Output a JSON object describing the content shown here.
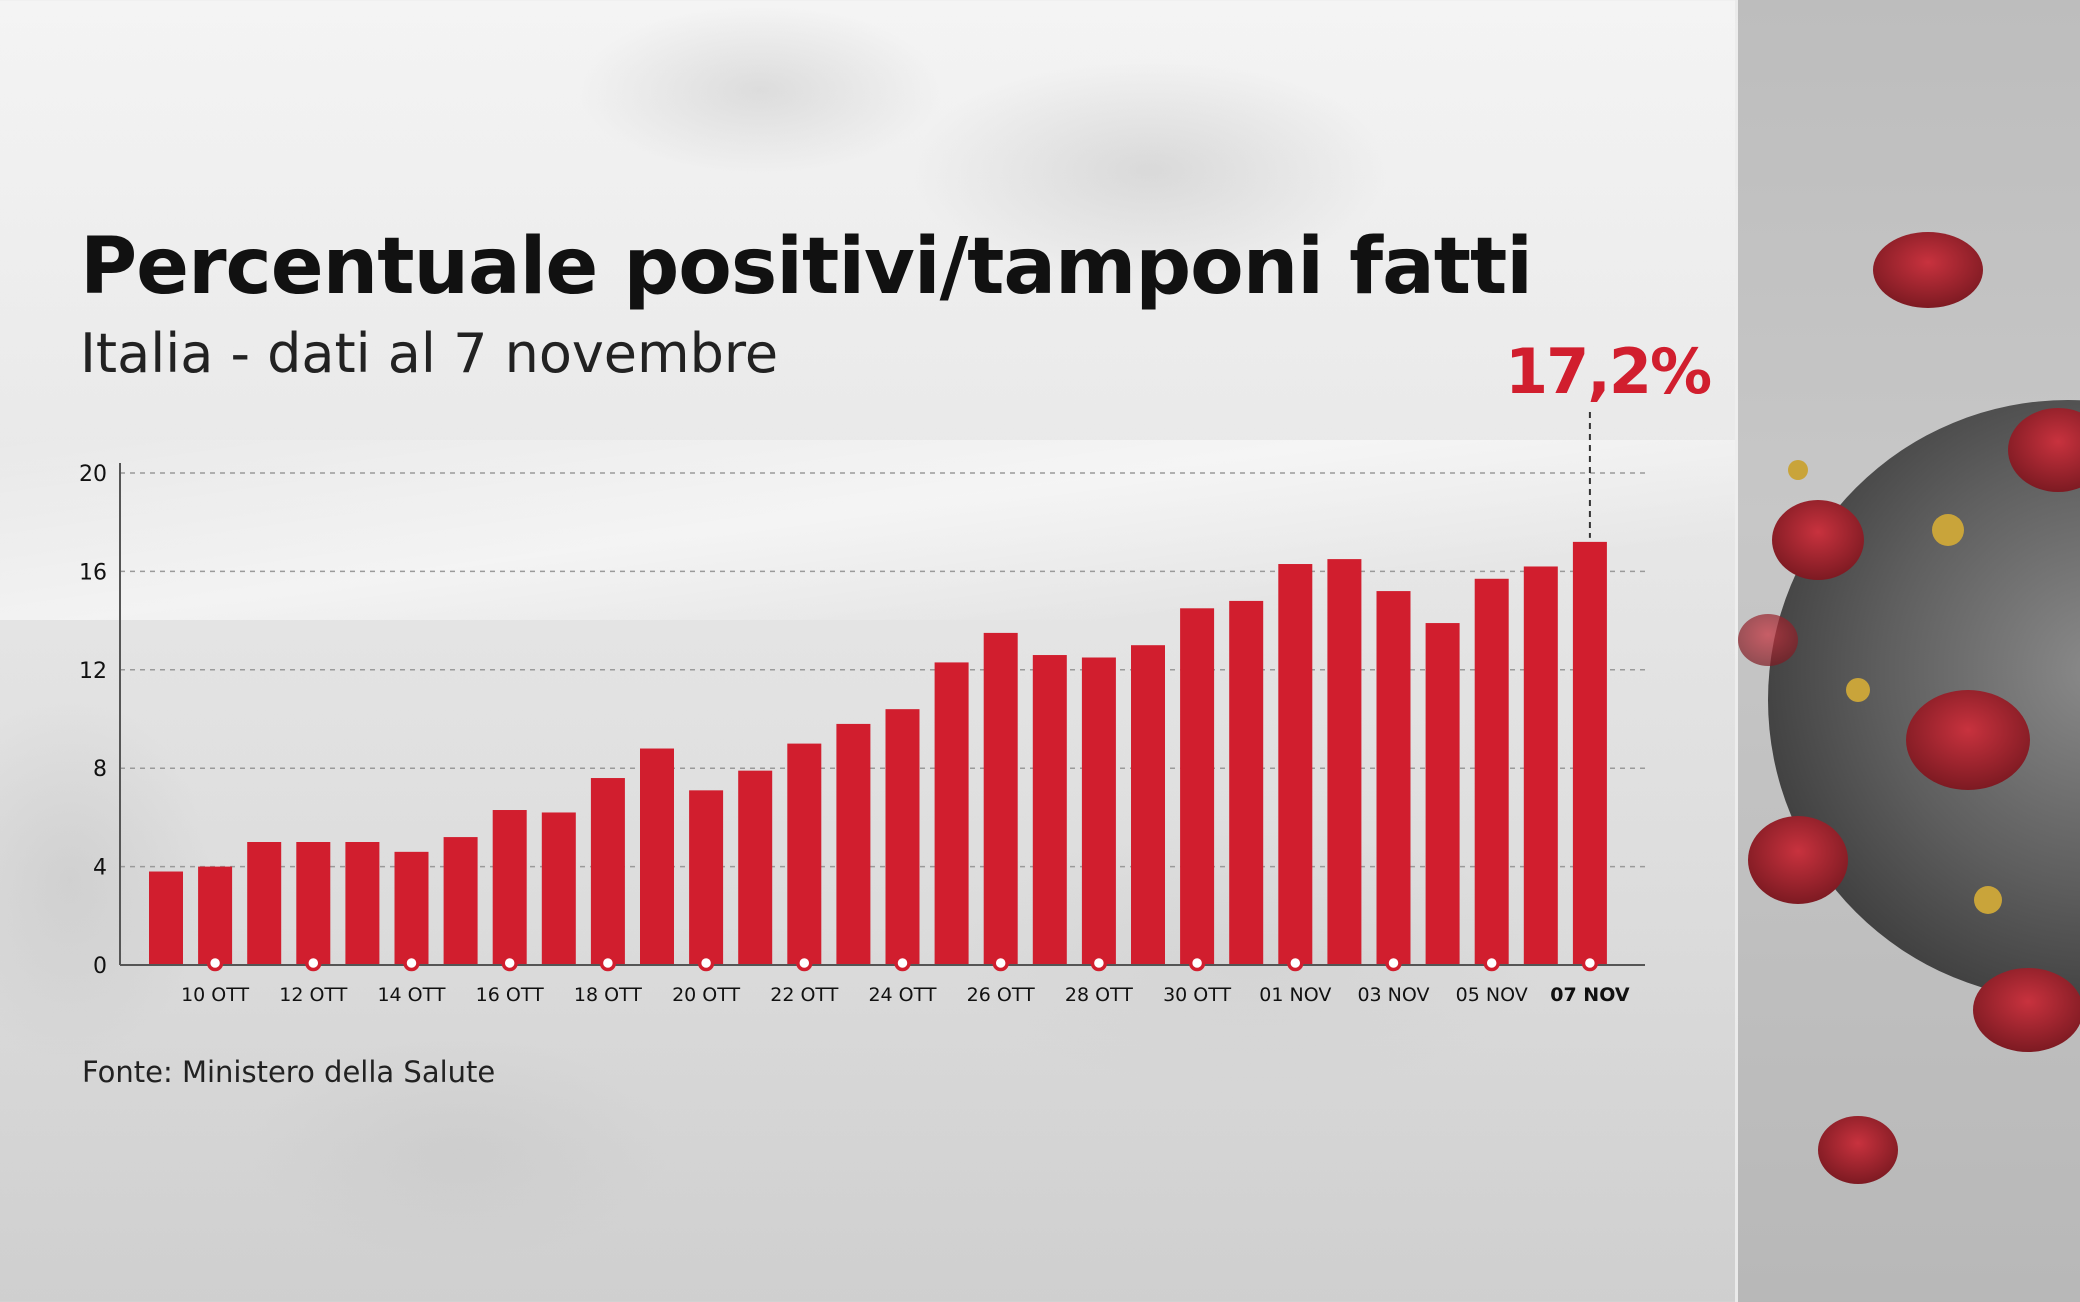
{
  "colors": {
    "bar": "#d11e2e",
    "highlight": "#d11e2e",
    "text": "#111111"
  },
  "header": {
    "title": "Percentuale positivi/tamponi fatti",
    "subtitle": "Italia - dati al 7 novembre"
  },
  "annotation": {
    "label": "17,2%"
  },
  "footer": {
    "source": "Fonte: Ministero della Salute"
  },
  "chart_data": {
    "type": "bar",
    "title": "Percentuale positivi/tamponi fatti",
    "subtitle": "Italia - dati al 7 novembre",
    "xlabel": "",
    "ylabel": "",
    "ylim": [
      0,
      20
    ],
    "yticks": [
      0,
      4,
      8,
      12,
      16,
      20
    ],
    "grid": true,
    "categories": [
      "09 OTT",
      "10 OTT",
      "11 OTT",
      "12 OTT",
      "13 OTT",
      "14 OTT",
      "15 OTT",
      "16 OTT",
      "17 OTT",
      "18 OTT",
      "19 OTT",
      "20 OTT",
      "21 OTT",
      "22 OTT",
      "23 OTT",
      "24 OTT",
      "25 OTT",
      "26 OTT",
      "27 OTT",
      "28 OTT",
      "29 OTT",
      "30 OTT",
      "31 OTT",
      "01 NOV",
      "02 NOV",
      "03 NOV",
      "04 NOV",
      "05 NOV",
      "06 NOV",
      "07 NOV"
    ],
    "values": [
      3.8,
      4.0,
      5.0,
      5.0,
      5.0,
      4.6,
      5.2,
      6.3,
      6.2,
      7.6,
      8.8,
      7.1,
      7.9,
      9.0,
      9.8,
      10.4,
      12.3,
      13.5,
      12.6,
      12.5,
      13.0,
      14.5,
      14.8,
      16.3,
      16.5,
      15.2,
      13.9,
      15.7,
      16.2,
      17.2
    ],
    "x_tick_labels": [
      "10 OTT",
      "12 OTT",
      "14 OTT",
      "16 OTT",
      "18 OTT",
      "20 OTT",
      "22 OTT",
      "24 OTT",
      "26 OTT",
      "28 OTT",
      "30 OTT",
      "01 NOV",
      "03 NOV",
      "05 NOV",
      "07 NOV"
    ],
    "highlight": {
      "category": "07 NOV",
      "value": 17.2,
      "label": "17,2%"
    }
  }
}
